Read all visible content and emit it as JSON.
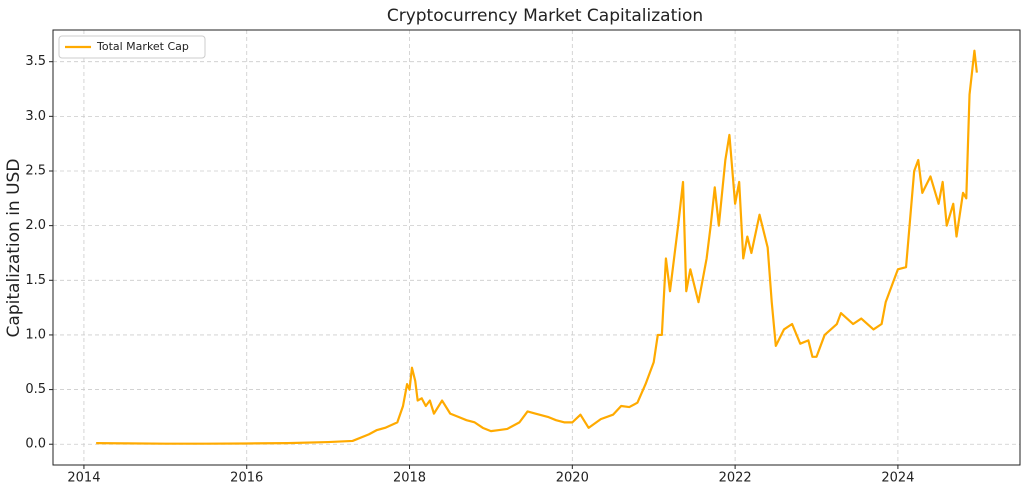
{
  "chart_data": {
    "type": "line",
    "title": "Cryptocurrency Market Capitalization",
    "y_label": "Capitalization in USD",
    "x": [
      2014.15,
      2014.5,
      2015.0,
      2015.5,
      2016.0,
      2016.5,
      2017.0,
      2017.3,
      2017.5,
      2017.6,
      2017.7,
      2017.85,
      2017.92,
      2017.97,
      2018.0,
      2018.03,
      2018.07,
      2018.1,
      2018.15,
      2018.2,
      2018.25,
      2018.3,
      2018.4,
      2018.5,
      2018.6,
      2018.7,
      2018.8,
      2018.9,
      2019.0,
      2019.1,
      2019.2,
      2019.35,
      2019.45,
      2019.55,
      2019.7,
      2019.8,
      2019.9,
      2020.0,
      2020.1,
      2020.2,
      2020.35,
      2020.5,
      2020.6,
      2020.7,
      2020.8,
      2020.9,
      2021.0,
      2021.05,
      2021.1,
      2021.15,
      2021.2,
      2021.3,
      2021.36,
      2021.4,
      2021.45,
      2021.55,
      2021.65,
      2021.7,
      2021.75,
      2021.8,
      2021.88,
      2021.93,
      2022.0,
      2022.05,
      2022.1,
      2022.15,
      2022.2,
      2022.3,
      2022.4,
      2022.45,
      2022.5,
      2022.6,
      2022.7,
      2022.8,
      2022.9,
      2022.95,
      2023.0,
      2023.1,
      2023.25,
      2023.3,
      2023.45,
      2023.55,
      2023.7,
      2023.8,
      2023.85,
      2023.95,
      2024.0,
      2024.1,
      2024.2,
      2024.25,
      2024.3,
      2024.4,
      2024.5,
      2024.55,
      2024.6,
      2024.68,
      2024.72,
      2024.8,
      2024.84,
      2024.88,
      2024.94,
      2024.97
    ],
    "series": [
      {
        "name": "Total Market Cap",
        "color": "#ffaa00",
        "values": [
          0.01,
          0.008,
          0.005,
          0.005,
          0.007,
          0.01,
          0.02,
          0.03,
          0.09,
          0.13,
          0.15,
          0.2,
          0.35,
          0.55,
          0.5,
          0.7,
          0.58,
          0.4,
          0.42,
          0.35,
          0.4,
          0.28,
          0.4,
          0.28,
          0.25,
          0.22,
          0.2,
          0.15,
          0.12,
          0.13,
          0.14,
          0.2,
          0.3,
          0.28,
          0.25,
          0.22,
          0.2,
          0.2,
          0.27,
          0.15,
          0.23,
          0.27,
          0.35,
          0.34,
          0.38,
          0.55,
          0.75,
          1.0,
          1.0,
          1.7,
          1.4,
          2.0,
          2.4,
          1.4,
          1.6,
          1.3,
          1.7,
          2.0,
          2.35,
          2.0,
          2.6,
          2.83,
          2.2,
          2.4,
          1.7,
          1.9,
          1.75,
          2.1,
          1.8,
          1.3,
          0.9,
          1.05,
          1.1,
          0.92,
          0.95,
          0.8,
          0.8,
          1.0,
          1.1,
          1.2,
          1.1,
          1.15,
          1.05,
          1.1,
          1.3,
          1.5,
          1.6,
          1.62,
          2.5,
          2.6,
          2.3,
          2.45,
          2.2,
          2.4,
          2.0,
          2.2,
          1.9,
          2.3,
          2.25,
          3.2,
          3.6,
          3.4
        ]
      }
    ],
    "xlim": [
      2013.62,
      2025.5
    ],
    "ylim": [
      -0.19,
      3.79
    ],
    "xticks": [
      2014,
      2016,
      2018,
      2020,
      2022,
      2024
    ],
    "yticks": [
      {
        "value": 0,
        "label": "0.0"
      },
      0.5,
      {
        "value": 1,
        "label": "1.0"
      },
      1.5,
      {
        "value": 2,
        "label": "2.0"
      },
      2.5,
      {
        "value": 3,
        "label": "3.0"
      },
      3.5
    ],
    "grid": true,
    "legend": "upper left"
  }
}
